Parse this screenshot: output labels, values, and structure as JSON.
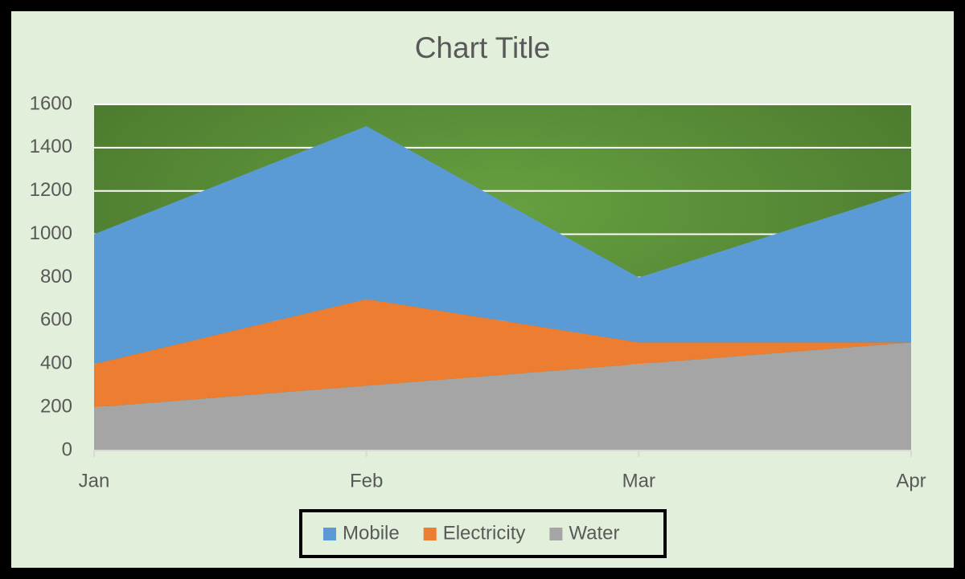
{
  "chart_data": {
    "type": "stacked_area",
    "title": "Chart Title",
    "categories": [
      "Jan",
      "Feb",
      "Mar",
      "Apr"
    ],
    "series": [
      {
        "name": "Mobile",
        "color": "#5b9bd5",
        "values": [
          600,
          800,
          300,
          700
        ]
      },
      {
        "name": "Electricity",
        "color": "#ed7d31",
        "values": [
          200,
          400,
          100,
          0
        ]
      },
      {
        "name": "Water",
        "color": "#a5a5a5",
        "values": [
          200,
          300,
          400,
          500
        ]
      }
    ],
    "ylim": [
      0,
      1600
    ],
    "yticks": [
      0,
      200,
      400,
      600,
      800,
      1000,
      1200,
      1400,
      1600
    ],
    "grid": true,
    "legend": "bottom"
  }
}
